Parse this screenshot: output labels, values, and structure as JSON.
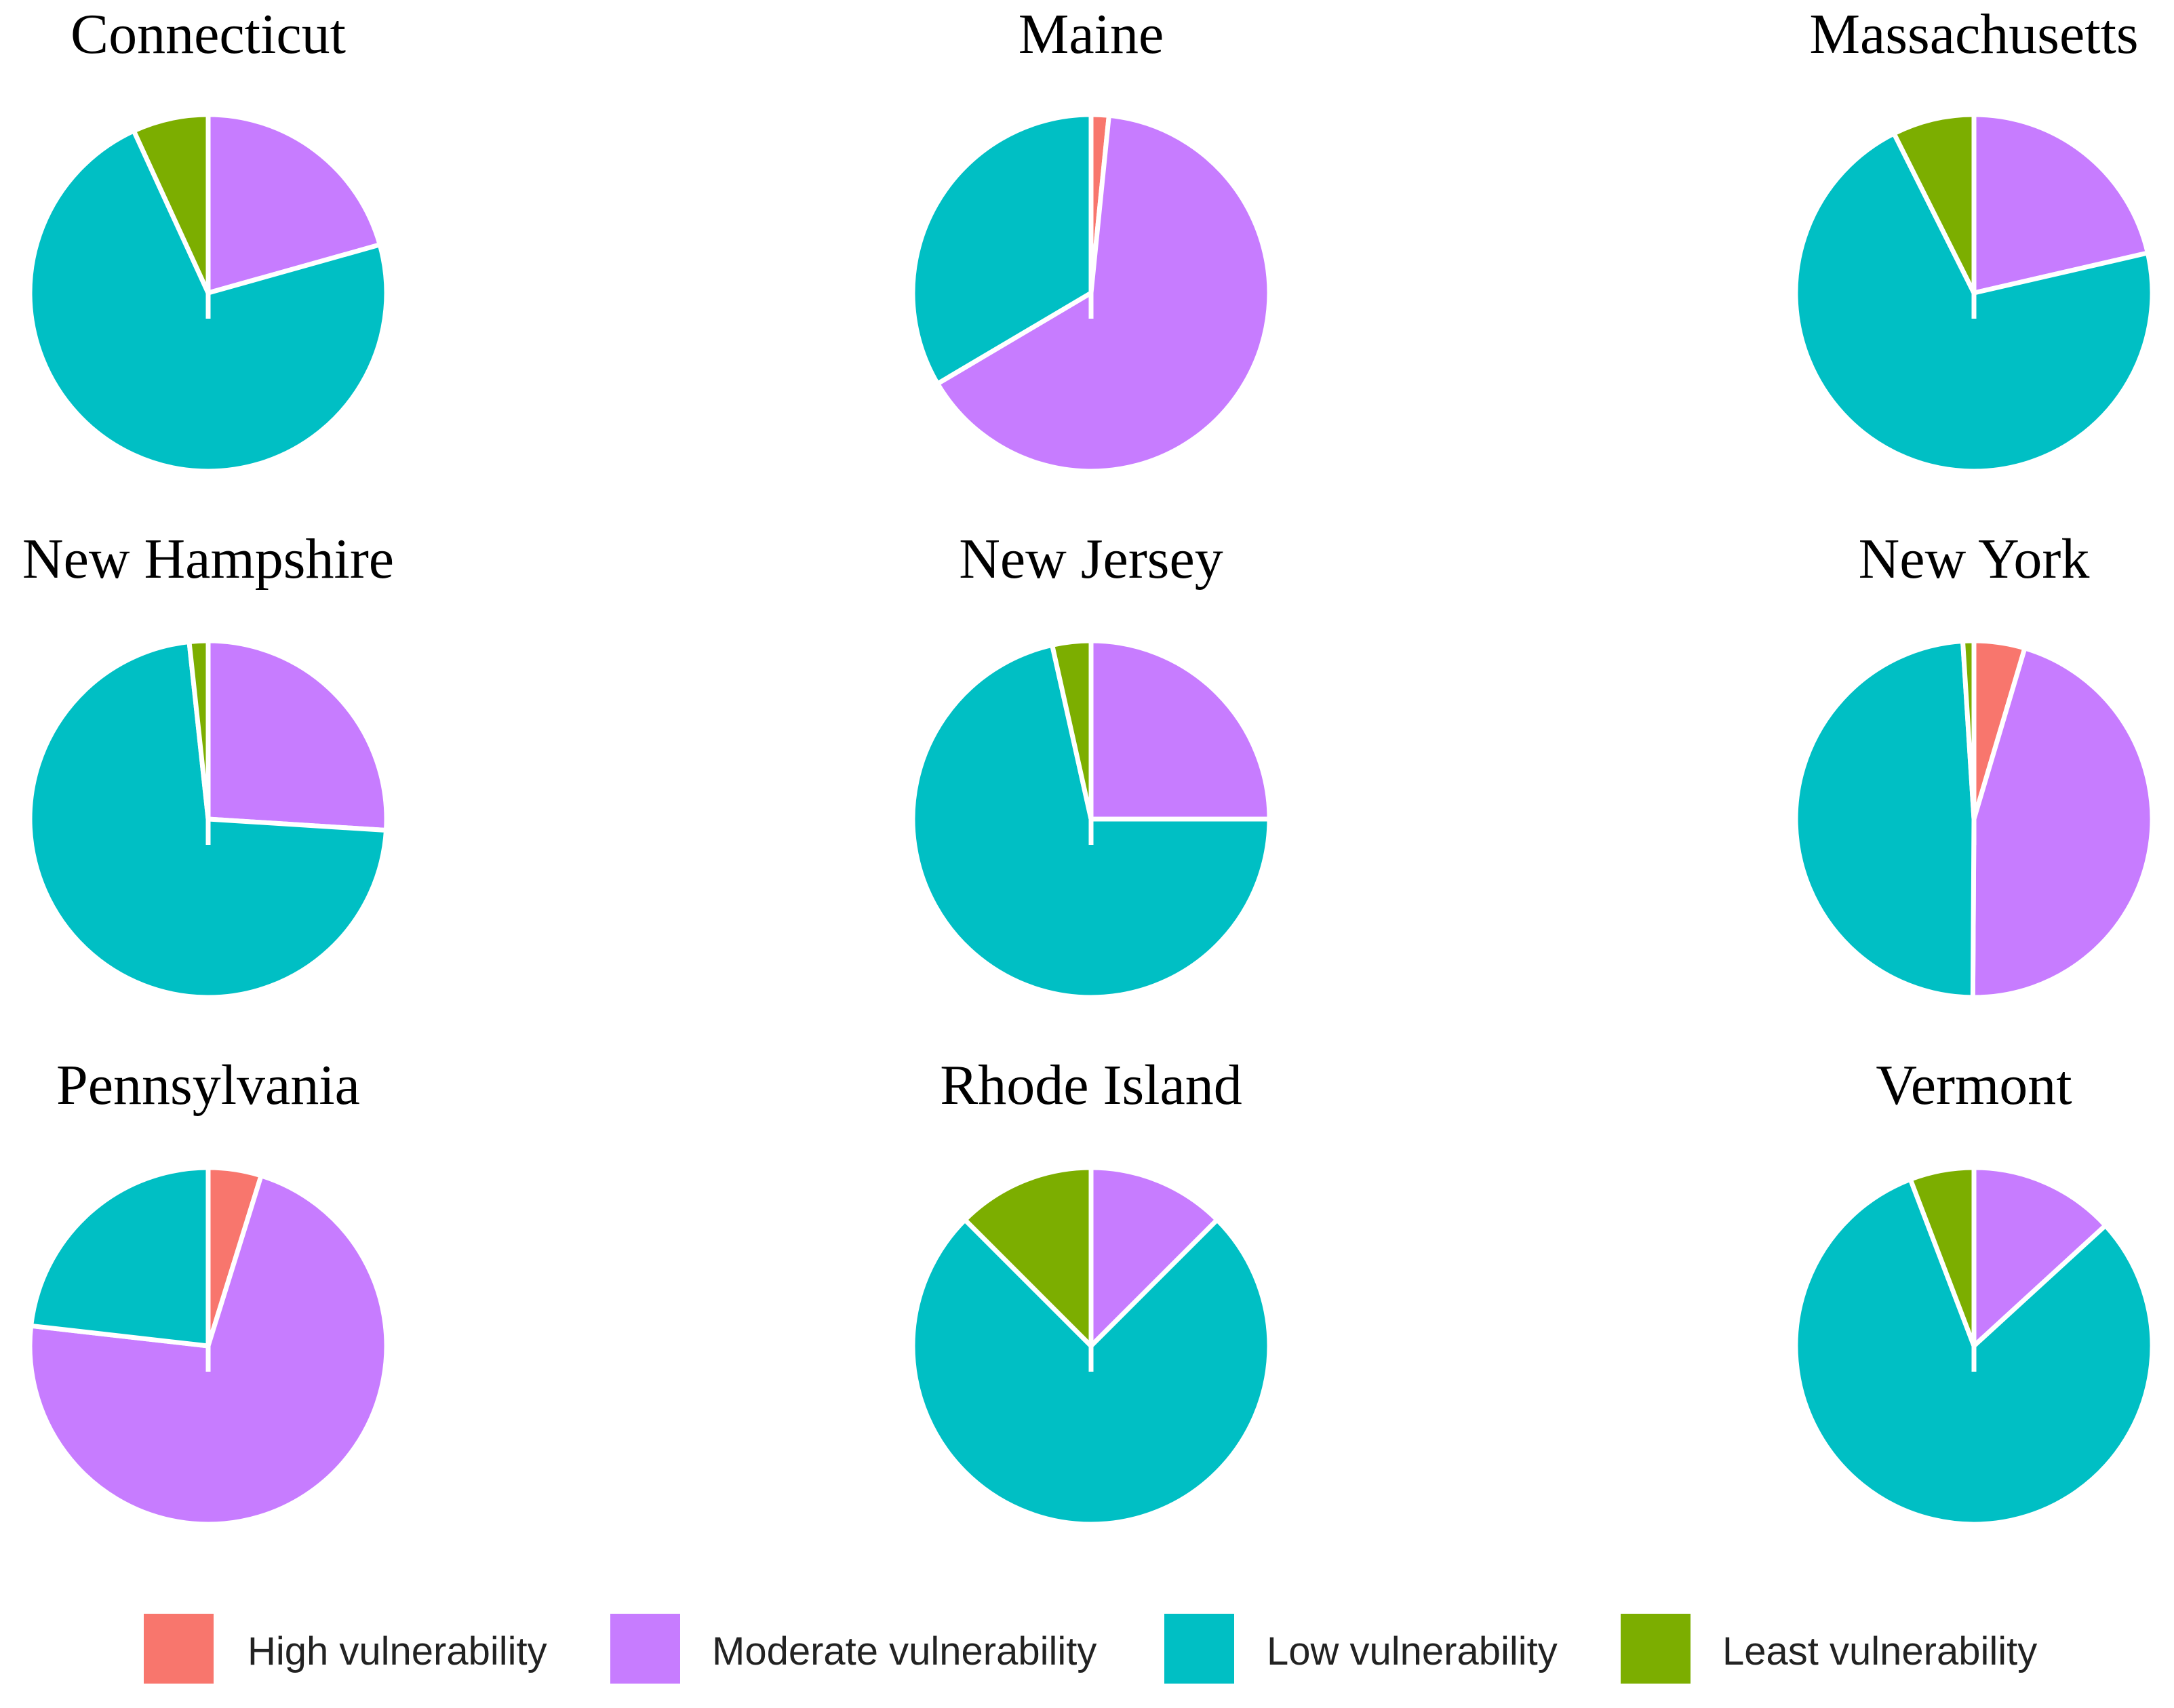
{
  "chart_data": {
    "type": "pie",
    "categories": [
      "High vulnerability",
      "Moderate vulnerability",
      "Low vulnerability",
      "Least vulnerability"
    ],
    "colors": {
      "High vulnerability": "#F8766D",
      "Moderate vulnerability": "#C77CFF",
      "Low vulnerability": "#00BFC4",
      "Least vulnerability": "#7CAE00"
    },
    "legend_position": "bottom",
    "start_angle": "12 o'clock",
    "direction": "clockwise",
    "pies": [
      {
        "title": "Connecticut",
        "values": {
          "High vulnerability": 0.0,
          "Moderate vulnerability": 20.5,
          "Low vulnerability": 72.0,
          "Least vulnerability": 6.8
        }
      },
      {
        "title": "Maine",
        "values": {
          "High vulnerability": 1.6,
          "Moderate vulnerability": 64.9,
          "Low vulnerability": 33.5,
          "Least vulnerability": 0.0
        }
      },
      {
        "title": "Massachusetts",
        "values": {
          "High vulnerability": 0.0,
          "Moderate vulnerability": 21.4,
          "Low vulnerability": 71.2,
          "Least vulnerability": 7.4
        }
      },
      {
        "title": "New Hampshire",
        "values": {
          "High vulnerability": 0.0,
          "Moderate vulnerability": 26.0,
          "Low vulnerability": 72.3,
          "Least vulnerability": 1.7
        }
      },
      {
        "title": "New Jersey",
        "values": {
          "High vulnerability": 0.0,
          "Moderate vulnerability": 25.0,
          "Low vulnerability": 71.5,
          "Least vulnerability": 3.5
        }
      },
      {
        "title": "New York",
        "values": {
          "High vulnerability": 4.6,
          "Moderate vulnerability": 45.5,
          "Low vulnerability": 48.9,
          "Least vulnerability": 1.0
        }
      },
      {
        "title": "Pennsylvania",
        "values": {
          "High vulnerability": 4.8,
          "Moderate vulnerability": 72.0,
          "Low vulnerability": 23.2,
          "Least vulnerability": 0.0
        }
      },
      {
        "title": "Rhode Island",
        "values": {
          "High vulnerability": 0.0,
          "Moderate vulnerability": 12.5,
          "Low vulnerability": 75.0,
          "Least vulnerability": 12.5
        }
      },
      {
        "title": "Vermont",
        "values": {
          "High vulnerability": 0.0,
          "Moderate vulnerability": 13.2,
          "Low vulnerability": 81.0,
          "Least vulnerability": 5.8
        }
      }
    ]
  }
}
